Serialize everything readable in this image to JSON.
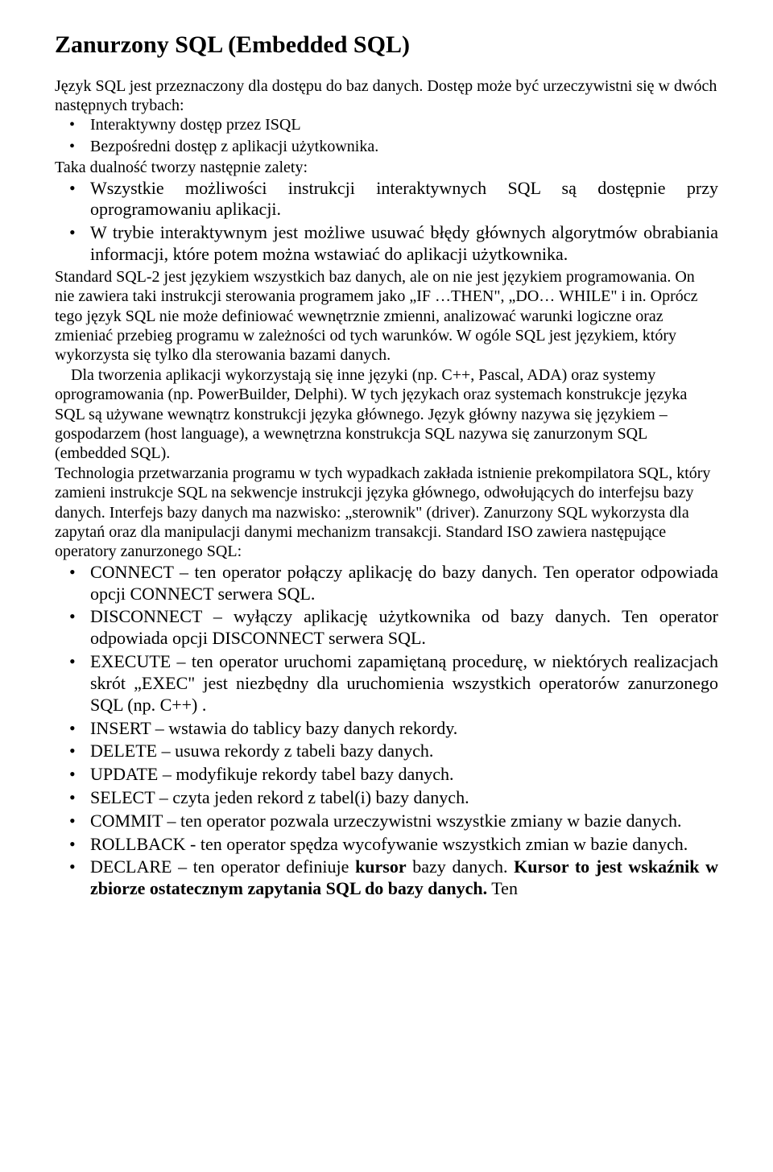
{
  "title": "Zanurzony SQL (Embedded SQL)",
  "intro1": "Język SQL jest przeznaczony dla dostępu do baz danych. Dostęp może być urzeczywistni się w dwóch następnych trybach:",
  "introBullets": [
    "Interaktywny dostęp przez ISQL",
    "Bezpośredni dostęp z aplikacji użytkownika."
  ],
  "intro2": "Taka dualność tworzy następnie zalety:",
  "dualBullets": [
    "Wszystkie możliwości instrukcji interaktywnych SQL są dostępnie przy oprogramowaniu aplikacji.",
    "W trybie interaktywnym jest możliwe usuwać błędy głównych algorytmów obrabiania informacji, które potem można wstawiać do aplikacji użytkownika."
  ],
  "body1": "Standard SQL-2 jest językiem wszystkich baz danych, ale on nie jest językiem programowania. On nie zawiera taki instrukcji sterowania programem jako „IF …THEN\", „DO… WHILE\" i in. Oprócz tego język SQL nie może definiować wewnętrznie zmienni, analizować warunki logiczne oraz zmieniać przebieg programu w zależności od tych warunków. W ogóle SQL jest językiem, który wykorzysta się tylko dla sterowania bazami danych.",
  "body2": "Dla tworzenia aplikacji wykorzystają się inne języki (np. C++, Pascal, ADA) oraz systemy oprogramowania (np. PowerBuilder, Delphi). W tych językach oraz systemach konstrukcje języka SQL są używane wewnątrz konstrukcji języka głównego. Język główny nazywa się językiem – gospodarzem (host language), a wewnętrzna konstrukcja SQL nazywa się zanurzonym SQL (embedded SQL).",
  "body3": "Technologia przetwarzania programu w tych wypadkach zakłada istnienie prekompilatora SQL, który zamieni instrukcje SQL na sekwencje instrukcji języka głównego, odwołujących do interfejsu bazy danych. Interfejs bazy danych ma nazwisko: „sterownik\" (driver). Zanurzony SQL wykorzysta dla zapytań oraz dla manipulacji danymi mechanizm transakcji. Standard ISO zawiera następujące operatory zanurzonego SQL:",
  "ops": [
    {
      "text": "CONNECT – ten operator połączy aplikację do bazy danych. Ten operator odpowiada opcji CONNECT serwera SQL."
    },
    {
      "text": "DISCONNECT – wyłączy aplikację użytkownika od bazy danych. Ten operator odpowiada opcji DISCONNECT serwera SQL."
    },
    {
      "text": "EXECUTE – ten operator uruchomi zapamiętaną procedurę, w niektórych realizacjach skrót „EXEC\" jest niezbędny dla uruchomienia wszystkich operatorów zanurzonego SQL (np. C++) ."
    },
    {
      "text": "INSERT – wstawia do tablicy bazy danych rekordy."
    },
    {
      "text": "DELETE – usuwa rekordy z tabeli bazy danych."
    },
    {
      "text": "UPDATE – modyfikuje rekordy tabel bazy danych."
    },
    {
      "text": "SELECT – czyta jeden rekord z tabel(i) bazy danych."
    },
    {
      "text": "COMMIT – ten operator pozwala urzeczywistni wszystkie zmiany w bazie danych."
    },
    {
      "text": "ROLLBACK - ten operator spędza wycofywanie wszystkich zmian w bazie danych."
    },
    {
      "prefix": "DECLARE – ten operator definiuje ",
      "bold1": "kursor",
      "mid": " bazy danych. ",
      "bold2": "Kursor to jest wskaźnik w zbiorze ostatecznym zapytania SQL do bazy danych.",
      "suffix": " Ten"
    }
  ],
  "colors": {
    "bg": "#ffffff",
    "text": "#000000"
  },
  "fonts": {
    "family": "Times New Roman",
    "titleSize": 30,
    "bodySize": 20,
    "bigBulletSize": 22
  }
}
